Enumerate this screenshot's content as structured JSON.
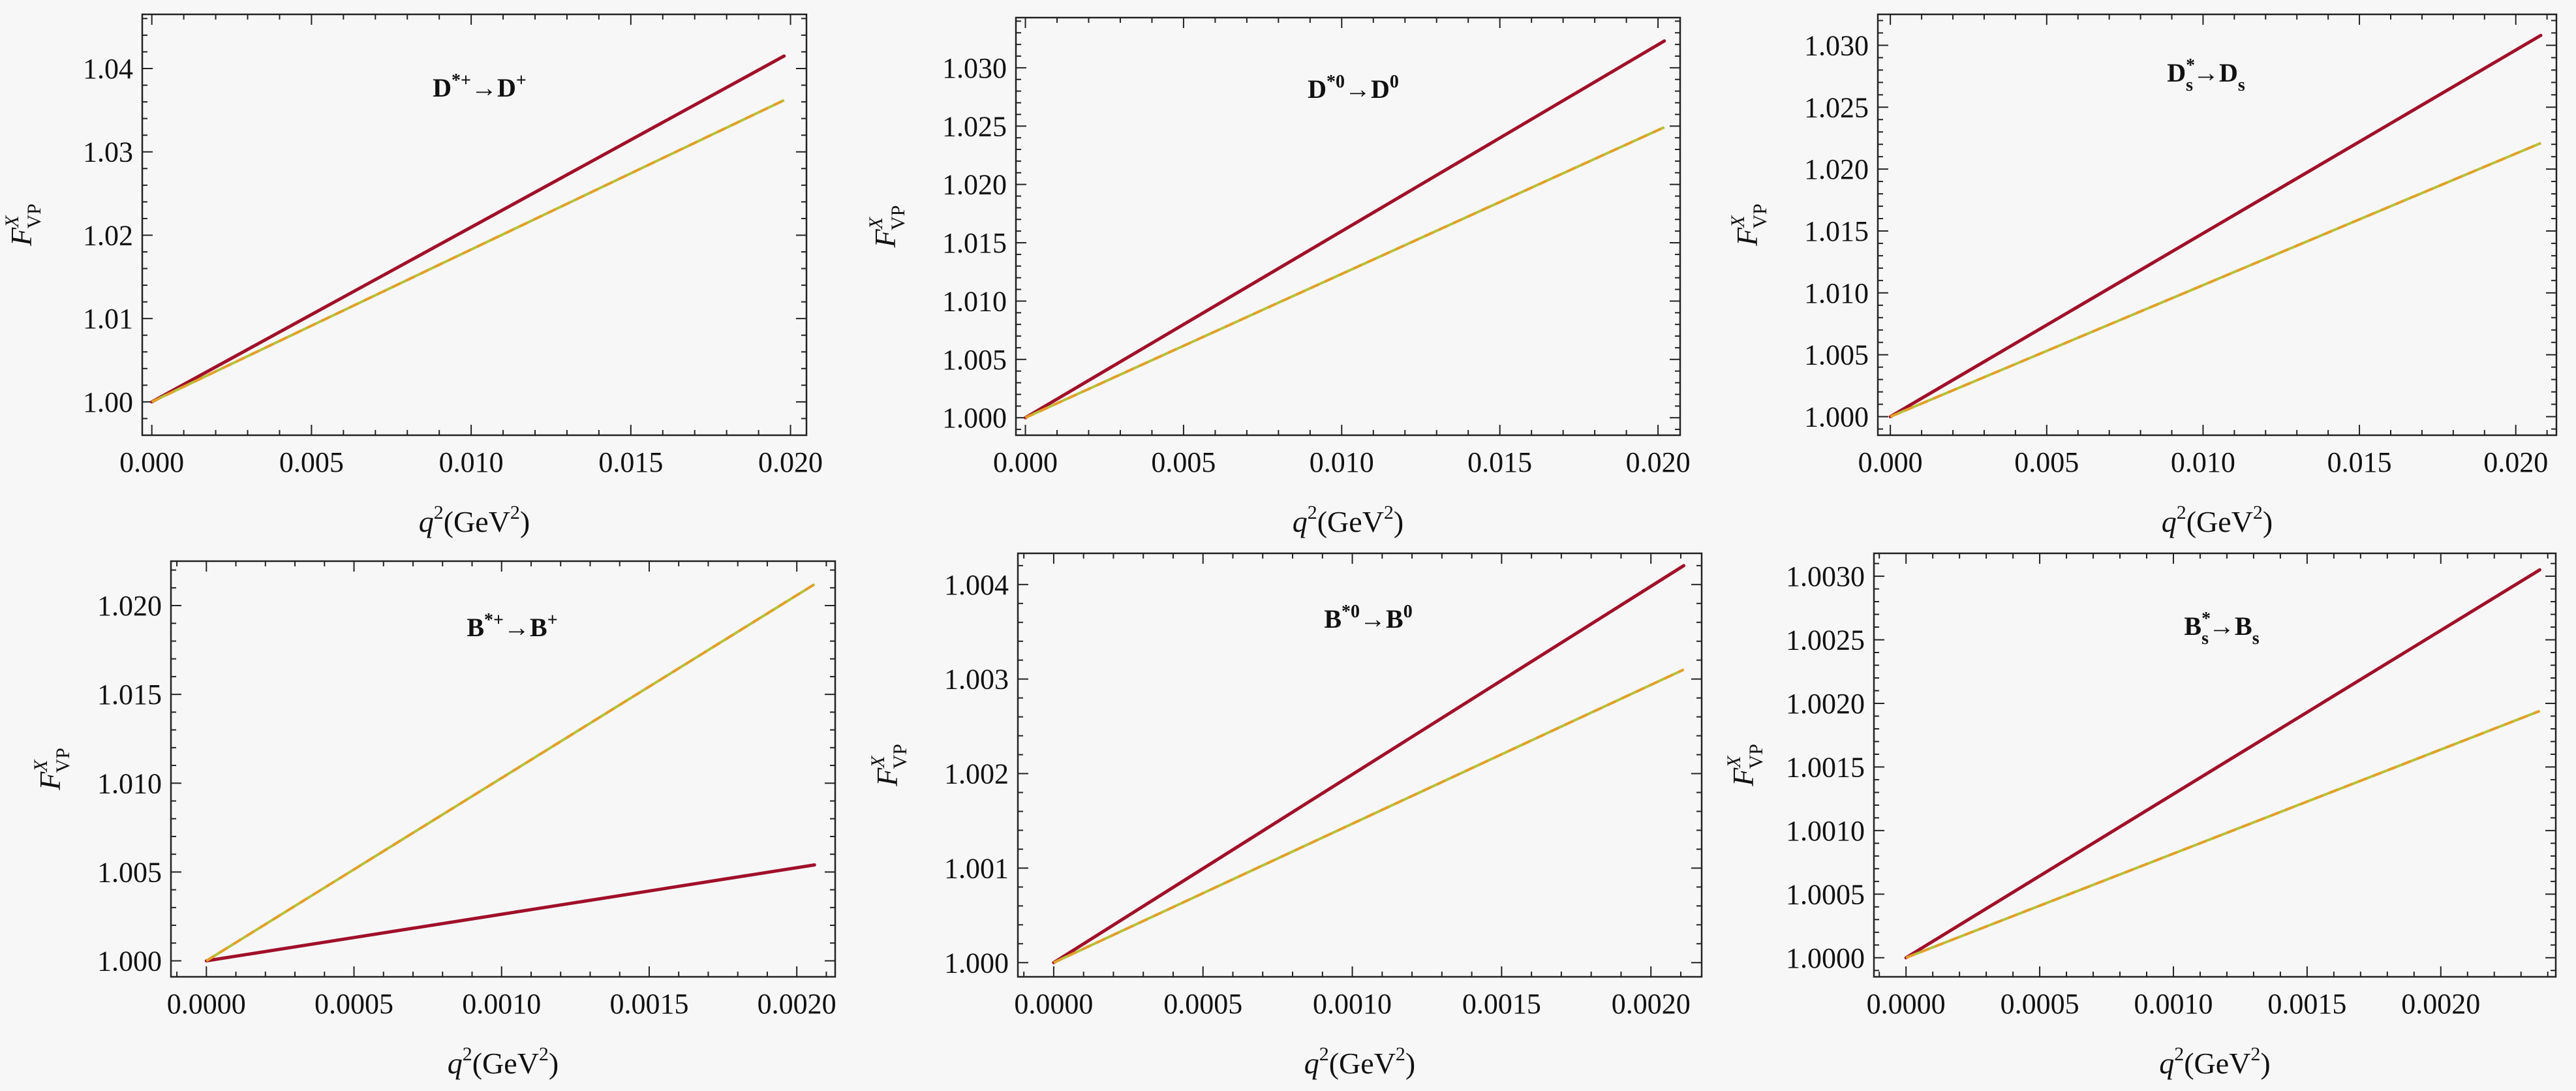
{
  "colors": {
    "solid": "#a0102a",
    "dashed_a": "#e2a02a",
    "dashed_b": "#b5c23a",
    "frame": "#222222",
    "background": "#f7f7f7"
  },
  "chart_data": [
    {
      "type": "line",
      "title": {
        "main": "D",
        "sup1": "*+",
        "arrow": "→",
        "target": "D",
        "sup2": "+",
        "sub1": "",
        "sub2": ""
      },
      "xlabel": {
        "base": "q",
        "power": "2",
        "unit_open": "(GeV",
        "unit_power": "2",
        "unit_close": ")"
      },
      "ylabel": {
        "base": "F",
        "sup": "X",
        "sub": "VP"
      },
      "xlim": [
        -0.0003,
        0.0205
      ],
      "ylim": [
        0.996,
        1.0465
      ],
      "xticks": [
        0.0,
        0.005,
        0.01,
        0.015,
        0.02
      ],
      "xtick_labels": [
        "0.000",
        "0.005",
        "0.010",
        "0.015",
        "0.020"
      ],
      "yticks": [
        1.0,
        1.01,
        1.02,
        1.03,
        1.04
      ],
      "ytick_labels": [
        "1.00",
        "1.01",
        "1.02",
        "1.03",
        "1.04"
      ],
      "series": [
        {
          "style": "solid",
          "x": [
            0.0,
            0.0198
          ],
          "y": [
            1.0,
            1.0415
          ]
        },
        {
          "style": "dashed",
          "x": [
            0.0,
            0.0198
          ],
          "y": [
            1.0,
            1.0362
          ]
        }
      ]
    },
    {
      "type": "line",
      "title": {
        "main": "D",
        "sup1": "*0",
        "arrow": "→",
        "target": "D",
        "sup2": "0",
        "sub1": "",
        "sub2": ""
      },
      "xlabel": {
        "base": "q",
        "power": "2",
        "unit_open": "(GeV",
        "unit_power": "2",
        "unit_close": ")"
      },
      "ylabel": {
        "base": "F",
        "sup": "X",
        "sub": "VP"
      },
      "xlim": [
        -0.0003,
        0.0207
      ],
      "ylim": [
        0.9985,
        1.0343
      ],
      "xticks": [
        0.0,
        0.005,
        0.01,
        0.015,
        0.02
      ],
      "xtick_labels": [
        "0.000",
        "0.005",
        "0.010",
        "0.015",
        "0.020"
      ],
      "yticks": [
        1.0,
        1.005,
        1.01,
        1.015,
        1.02,
        1.025,
        1.03
      ],
      "ytick_labels": [
        "1.000",
        "1.005",
        "1.010",
        "1.015",
        "1.020",
        "1.025",
        "1.030"
      ],
      "series": [
        {
          "style": "solid",
          "x": [
            0.0,
            0.0202
          ],
          "y": [
            1.0,
            1.0323
          ]
        },
        {
          "style": "dashed",
          "x": [
            0.0,
            0.0202
          ],
          "y": [
            1.0,
            1.0249
          ]
        }
      ]
    },
    {
      "type": "line",
      "title": {
        "main": "D",
        "sup1": "*",
        "arrow": "→",
        "target": "D",
        "sup2": "",
        "sub1": "s",
        "sub2": "s"
      },
      "xlabel": {
        "base": "q",
        "power": "2",
        "unit_open": "(GeV",
        "unit_power": "2",
        "unit_close": ")"
      },
      "ylabel": {
        "base": "F",
        "sup": "X",
        "sub": "VP"
      },
      "xlim": [
        -0.0004,
        0.0213
      ],
      "ylim": [
        0.9985,
        1.0325
      ],
      "xticks": [
        0.0,
        0.005,
        0.01,
        0.015,
        0.02
      ],
      "xtick_labels": [
        "0.000",
        "0.005",
        "0.010",
        "0.015",
        "0.020"
      ],
      "yticks": [
        1.0,
        1.005,
        1.01,
        1.015,
        1.02,
        1.025,
        1.03
      ],
      "ytick_labels": [
        "1.000",
        "1.005",
        "1.010",
        "1.015",
        "1.020",
        "1.025",
        "1.030"
      ],
      "series": [
        {
          "style": "solid",
          "x": [
            0.0,
            0.0208
          ],
          "y": [
            1.0,
            1.0308
          ]
        },
        {
          "style": "dashed",
          "x": [
            0.0,
            0.0208
          ],
          "y": [
            1.0,
            1.0221
          ]
        }
      ]
    },
    {
      "type": "line",
      "title": {
        "main": "B",
        "sup1": "*+",
        "arrow": "→",
        "target": "B",
        "sup2": "+",
        "sub1": "",
        "sub2": ""
      },
      "xlabel": {
        "base": "q",
        "power": "2",
        "unit_open": "(GeV",
        "unit_power": "2",
        "unit_close": ")"
      },
      "ylabel": {
        "base": "F",
        "sup": "X",
        "sub": "VP"
      },
      "xlim": [
        -0.00012,
        0.00213
      ],
      "ylim": [
        0.9991,
        1.0225
      ],
      "xticks": [
        0.0,
        0.0005,
        0.001,
        0.0015,
        0.002
      ],
      "xtick_labels": [
        "0.0000",
        "0.0005",
        "0.0010",
        "0.0015",
        "0.0020"
      ],
      "yticks": [
        1.0,
        1.005,
        1.01,
        1.015,
        1.02
      ],
      "ytick_labels": [
        "1.000",
        "1.005",
        "1.010",
        "1.015",
        "1.020"
      ],
      "series": [
        {
          "style": "solid",
          "x": [
            0.0,
            0.00206
          ],
          "y": [
            1.0,
            1.0054
          ]
        },
        {
          "style": "dashed",
          "x": [
            0.0,
            0.00206
          ],
          "y": [
            1.0,
            1.0212
          ]
        }
      ]
    },
    {
      "type": "line",
      "title": {
        "main": "B",
        "sup1": "*0",
        "arrow": "→",
        "target": "B",
        "sup2": "0",
        "sub1": "",
        "sub2": ""
      },
      "xlabel": {
        "base": "q",
        "power": "2",
        "unit_open": "(GeV",
        "unit_power": "2",
        "unit_close": ")"
      },
      "ylabel": {
        "base": "F",
        "sup": "X",
        "sub": "VP"
      },
      "xlim": [
        -0.00012,
        0.00217
      ],
      "ylim": [
        0.99985,
        1.00433
      ],
      "xticks": [
        0.0,
        0.0005,
        0.001,
        0.0015,
        0.002
      ],
      "xtick_labels": [
        "0.0000",
        "0.0005",
        "0.0010",
        "0.0015",
        "0.0020"
      ],
      "yticks": [
        1.0,
        1.001,
        1.002,
        1.003,
        1.004
      ],
      "ytick_labels": [
        "1.000",
        "1.001",
        "1.002",
        "1.003",
        "1.004"
      ],
      "series": [
        {
          "style": "solid",
          "x": [
            0.0,
            0.00211
          ],
          "y": [
            1.0,
            1.0042
          ]
        },
        {
          "style": "dashed",
          "x": [
            0.0,
            0.00211
          ],
          "y": [
            1.0,
            1.0031
          ]
        }
      ]
    },
    {
      "type": "line",
      "title": {
        "main": "B",
        "sup1": "*",
        "arrow": "→",
        "target": "B",
        "sup2": "",
        "sub1": "s",
        "sub2": "s"
      },
      "xlabel": {
        "base": "q",
        "power": "2",
        "unit_open": "(GeV",
        "unit_power": "2",
        "unit_close": ")"
      },
      "ylabel": {
        "base": "F",
        "sup": "X",
        "sub": "VP"
      },
      "xlim": [
        -0.00012,
        0.00243
      ],
      "ylim": [
        0.99985,
        1.00318
      ],
      "xticks": [
        0.0,
        0.0005,
        0.001,
        0.0015,
        0.002
      ],
      "xtick_labels": [
        "0.0000",
        "0.0005",
        "0.0010",
        "0.0015",
        "0.0020"
      ],
      "yticks": [
        1.0,
        1.0005,
        1.001,
        1.0015,
        1.002,
        1.0025,
        1.003
      ],
      "ytick_labels": [
        "1.0000",
        "1.0005",
        "1.0010",
        "1.0015",
        "1.0020",
        "1.0025",
        "1.0030"
      ],
      "series": [
        {
          "style": "solid",
          "x": [
            0.0,
            0.00237
          ],
          "y": [
            1.0,
            1.00305
          ]
        },
        {
          "style": "dashed",
          "x": [
            0.0,
            0.00237
          ],
          "y": [
            1.0,
            1.00194
          ]
        }
      ]
    }
  ]
}
